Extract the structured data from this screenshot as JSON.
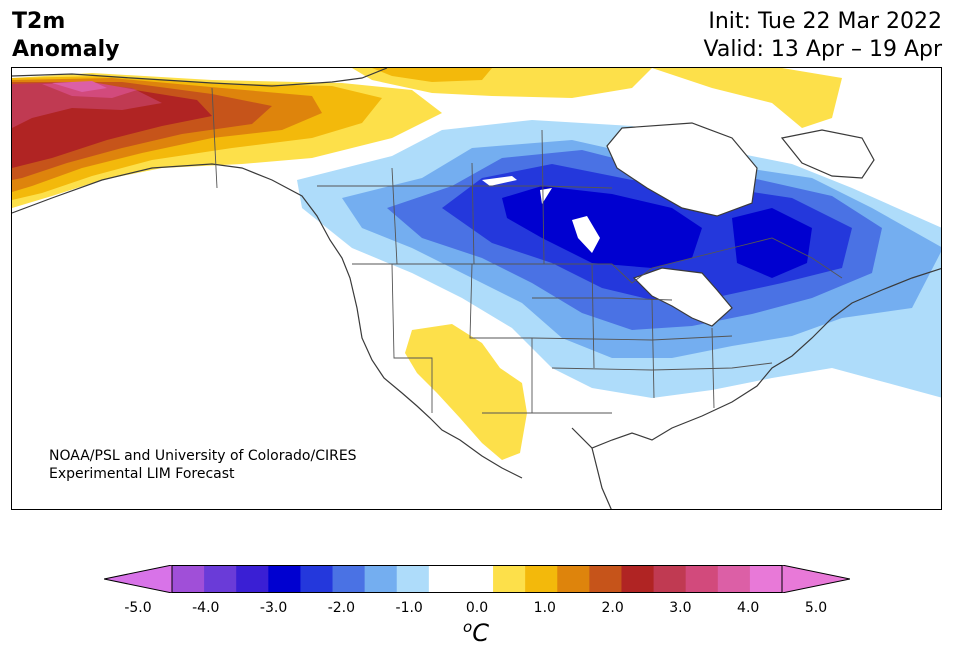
{
  "header": {
    "title_line1": "T2m",
    "title_line2": "Anomaly",
    "init_text": "Init: Tue 22 Mar 2022",
    "valid_text": "Valid: 13 Apr – 19 Apr"
  },
  "map": {
    "credit_line1": "NOAA/PSL and University of Colorado/CIRES",
    "credit_line2": "Experimental LIM Forecast"
  },
  "colorbar": {
    "unit": "C",
    "unit_superscript": "o",
    "tick_labels": [
      "-5.0",
      "-4.0",
      "-3.0",
      "-2.0",
      "-1.0",
      "0.0",
      "1.0",
      "2.0",
      "3.0",
      "4.0",
      "5.0"
    ],
    "bins": [
      -5.0,
      -4.5,
      -4.0,
      -3.5,
      -3.0,
      -2.5,
      -2.0,
      -1.5,
      -1.0,
      -0.5,
      0.5,
      1.0,
      1.5,
      2.0,
      2.5,
      3.0,
      3.5,
      4.0,
      4.5,
      5.0
    ],
    "colors": [
      "#d873e8",
      "#a04fd8",
      "#6a3bd8",
      "#3a1fd4",
      "#0000d0",
      "#2438dc",
      "#4a72e4",
      "#74aef0",
      "#aedcfa",
      "#ffffff",
      "#ffffff",
      "#fde04a",
      "#f3b90b",
      "#de840c",
      "#c6541a",
      "#b02423",
      "#c03a52",
      "#d24a7c",
      "#dc5fa6",
      "#e879d8",
      "#e879d8"
    ]
  }
}
